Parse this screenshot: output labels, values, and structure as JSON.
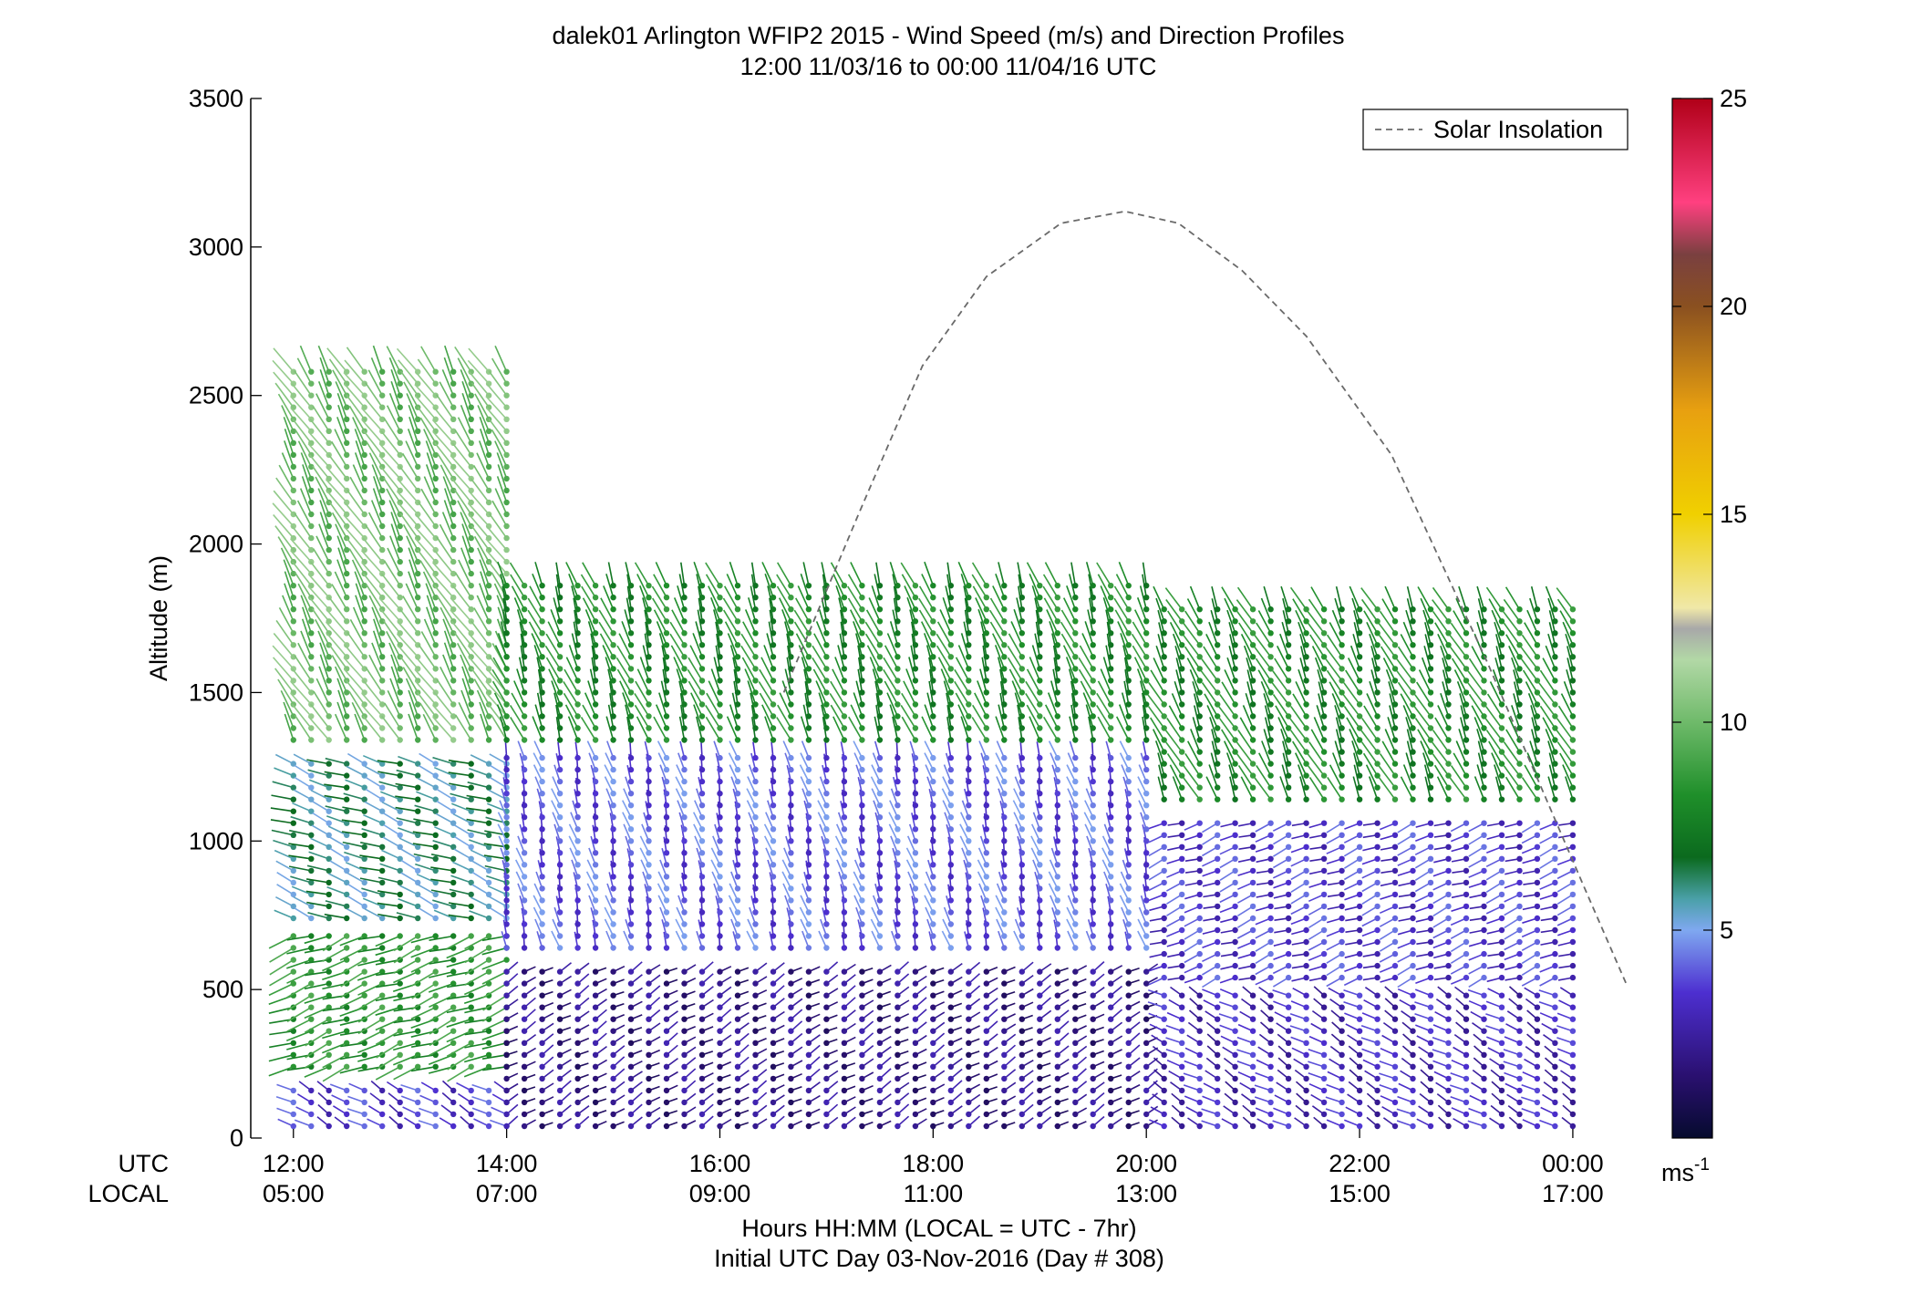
{
  "chart_data": {
    "type": "scatter",
    "subtype": "wind-barb-profile",
    "title": "dalek01 Arlington WFIP2 2015 - Wind Speed (m/s) and Direction Profiles",
    "subtitle": "12:00 11/03/16 to 00:00 11/04/16  UTC",
    "xlabel": "Hours HH:MM  (LOCAL = UTC - 7hr)",
    "xlabel2": "Initial UTC Day 03-Nov-2016 (Day # 308)",
    "ylabel": "Altitude (m)",
    "ylim": [
      0,
      3500
    ],
    "xlim_hours_utc": [
      11.6,
      24.3
    ],
    "yticks": [
      0,
      500,
      1000,
      1500,
      2000,
      2500,
      3000,
      3500
    ],
    "xtick_hours_utc": [
      12,
      14,
      16,
      18,
      20,
      22,
      24
    ],
    "utc_label": "UTC",
    "local_label": "LOCAL",
    "utc_ticks": [
      "12:00",
      "14:00",
      "16:00",
      "18:00",
      "20:00",
      "22:00",
      "00:00"
    ],
    "local_ticks": [
      "05:00",
      "07:00",
      "09:00",
      "11:00",
      "13:00",
      "15:00",
      "17:00"
    ],
    "legend": {
      "entry": "Solar Insolation",
      "placement": "top-right",
      "style": "dashed gray line"
    },
    "colorbar": {
      "min": 0,
      "max": 25,
      "ticks": [
        5,
        10,
        15,
        20,
        25
      ],
      "unit_label": "ms",
      "unit_exponent": "-1"
    },
    "solar_insolation": {
      "x_hours_utc": [
        16.6,
        17.3,
        17.9,
        18.5,
        19.2,
        19.8,
        20.3,
        20.9,
        21.5,
        22.3,
        23.2,
        24.1,
        24.5
      ],
      "altitude_m": [
        1500,
        2100,
        2600,
        2900,
        3080,
        3120,
        3080,
        2920,
        2700,
        2300,
        1600,
        850,
        520
      ]
    },
    "series": [
      {
        "time_range_utc": [
          "12:00",
          "14:00"
        ],
        "layers": [
          {
            "alt_m": [
              0,
              200
            ],
            "speed_ms": 3.5,
            "dir_deg": 240
          },
          {
            "alt_m": [
              200,
              700
            ],
            "speed_ms": 8.5,
            "dir_deg": 290
          },
          {
            "alt_m": [
              700,
              1300
            ],
            "speed_ms": 6.0,
            "dir_deg": 250
          },
          {
            "alt_m": [
              1300,
              2600
            ],
            "speed_ms": 10.0,
            "dir_deg": 210
          }
        ]
      },
      {
        "time_range_utc": [
          "14:00",
          "20:00"
        ],
        "layers": [
          {
            "alt_m": [
              0,
              600
            ],
            "speed_ms": 2.0,
            "dir_deg": 120
          },
          {
            "alt_m": [
              600,
              1300
            ],
            "speed_ms": 4.0,
            "dir_deg": 195
          },
          {
            "alt_m": [
              1300,
              1900
            ],
            "speed_ms": 8.0,
            "dir_deg": 200
          }
        ]
      },
      {
        "time_range_utc": [
          "20:10",
          "24:00"
        ],
        "layers": [
          {
            "alt_m": [
              0,
              500
            ],
            "speed_ms": 3.0,
            "dir_deg": 240
          },
          {
            "alt_m": [
              500,
              1100
            ],
            "speed_ms": 3.5,
            "dir_deg": 290
          },
          {
            "alt_m": [
              1100,
              1800
            ],
            "speed_ms": 8.0,
            "dir_deg": 205
          }
        ]
      }
    ],
    "gap_utc": [
      "19:50",
      "20:05"
    ]
  }
}
